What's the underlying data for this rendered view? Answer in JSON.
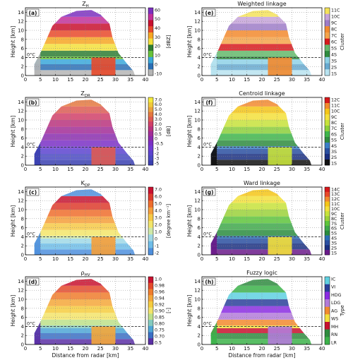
{
  "chart_data": [
    {
      "id": "a",
      "type": "heatmap",
      "title": "Z_H",
      "title_main": "Z",
      "title_sub": "H",
      "panel_label": "(a)",
      "xlabel": "",
      "ylabel": "Height [km]",
      "xlim": [
        0,
        40
      ],
      "ylim": [
        0,
        15
      ],
      "xticks": [
        "0",
        "5",
        "10",
        "15",
        "20",
        "25",
        "30",
        "35",
        "40"
      ],
      "yticks": [
        "0",
        "2",
        "4",
        "6",
        "8",
        "10",
        "12",
        "14"
      ],
      "colorbar": {
        "unit": "[dBZ]",
        "labels": [
          "60",
          "50",
          "40",
          "30",
          "20",
          "10",
          "0",
          "-10"
        ],
        "colors": [
          "#7b2fbf",
          "#c22f9a",
          "#c8102e",
          "#e8492a",
          "#f6a623",
          "#f3e03b",
          "#2e7d32",
          "#67c23a",
          "#3aa7d9",
          "#2a6fb5",
          "#b5b5b5"
        ]
      },
      "freezing_level": {
        "label": "0°C",
        "height": 4.0
      },
      "grid": true
    },
    {
      "id": "b",
      "type": "heatmap",
      "title": "Z_DR",
      "title_main": "Z",
      "title_sub": "DR",
      "panel_label": "(b)",
      "xlabel": "",
      "ylabel": "Height [km]",
      "xlim": [
        0,
        40
      ],
      "ylim": [
        0,
        15
      ],
      "xticks": [
        "0",
        "5",
        "10",
        "15",
        "20",
        "25",
        "30",
        "35",
        "40"
      ],
      "yticks": [
        "0",
        "2",
        "4",
        "6",
        "8",
        "10",
        "12",
        "14"
      ],
      "colorbar": {
        "unit": "[dB]",
        "labels": [
          "7.0",
          "6.0",
          "5.0",
          "4.0",
          "3.0",
          "2.0",
          "1.0",
          "0.5",
          "0",
          "-0.5",
          "-1",
          "-2",
          "-3",
          "-5"
        ],
        "colors": [
          "#f6eb3a",
          "#f0c93a",
          "#eaa23d",
          "#e4783f",
          "#de5a52",
          "#d03f68",
          "#b9327d",
          "#a22c97",
          "#8a2bae",
          "#7a2fc5",
          "#6f3bd3",
          "#5c43cf",
          "#4a49c2",
          "#3a3fb0"
        ]
      },
      "freezing_level": {
        "label": "0°C",
        "height": 4.0
      },
      "grid": true
    },
    {
      "id": "c",
      "type": "heatmap",
      "title": "K_DP",
      "title_main": "K",
      "title_sub": "DP",
      "panel_label": "(c)",
      "xlabel": "",
      "ylabel": "Height [km]",
      "xlim": [
        0,
        40
      ],
      "ylim": [
        0,
        15
      ],
      "xticks": [
        "0",
        "5",
        "10",
        "15",
        "20",
        "25",
        "30",
        "35",
        "40"
      ],
      "yticks": [
        "0",
        "2",
        "4",
        "6",
        "8",
        "10",
        "12",
        "14"
      ],
      "colorbar": {
        "unit": "[degree km⁻¹]",
        "labels": [
          "7.0",
          "6.0",
          "5.0",
          "4.0",
          "3.0",
          "2.0",
          "1.0",
          "0",
          "-1",
          "-2"
        ],
        "colors": [
          "#c8102e",
          "#dd3b2c",
          "#ee6d2d",
          "#f59e3a",
          "#f6c946",
          "#f3e56a",
          "#cfe9a8",
          "#9fd8e6",
          "#6fbde8",
          "#4e8fdd"
        ]
      },
      "freezing_level": {
        "label": "0°C",
        "height": 4.0
      },
      "grid": true
    },
    {
      "id": "d",
      "type": "heatmap",
      "title": "ρ_HV",
      "title_main": "ρ",
      "title_sub": "HV",
      "panel_label": "(d)",
      "xlabel": "Distance from radar [km]",
      "ylabel": "Height [km]",
      "xlim": [
        0,
        40
      ],
      "ylim": [
        0,
        15
      ],
      "xticks": [
        "0",
        "5",
        "10",
        "15",
        "20",
        "25",
        "30",
        "35",
        "40"
      ],
      "yticks": [
        "0",
        "2",
        "4",
        "6",
        "8",
        "10",
        "12",
        "14"
      ],
      "colorbar": {
        "unit": "[-]",
        "labels": [
          "1.0",
          "0.98",
          "0.96",
          "0.94",
          "0.92",
          "0.90",
          "0.85",
          "0.80",
          "0.75",
          "0.70",
          "0.5"
        ],
        "colors": [
          "#c8102e",
          "#e44a2b",
          "#ef7d2d",
          "#f4a73a",
          "#f6cc3f",
          "#f3e46a",
          "#bde089",
          "#84cbbf",
          "#4ea6d6",
          "#3a6fc4",
          "#5a2fa5"
        ]
      },
      "freezing_level": {
        "label": "0°C",
        "height": 4.0
      },
      "grid": true
    },
    {
      "id": "e",
      "type": "heatmap",
      "title": "Weighted linkage",
      "panel_label": "(e)",
      "xlabel": "",
      "ylabel": "Height [km]",
      "xlim": [
        0,
        40
      ],
      "ylim": [
        0,
        15
      ],
      "xticks": [
        "0",
        "5",
        "10",
        "15",
        "20",
        "25",
        "30",
        "35",
        "40"
      ],
      "yticks": [
        "0",
        "2",
        "4",
        "6",
        "8",
        "10",
        "12",
        "14"
      ],
      "colorbar": {
        "unit": "Cluster",
        "labels": [
          "11C",
          "10C",
          "9C",
          "8C",
          "7C",
          "6C",
          "5S",
          "4S",
          "3S",
          "2S",
          "1S"
        ],
        "colors": [
          "#f4e25a",
          "#c6a3d9",
          "#9e7cc7",
          "#f28a2e",
          "#f5a44a",
          "#d7191c",
          "#64b86b",
          "#2e8b3e",
          "#8ed1e6",
          "#67a9cf",
          "#b8e3f0"
        ]
      },
      "freezing_level": {
        "label": "0°C",
        "height": 4.0
      },
      "grid": true
    },
    {
      "id": "f",
      "type": "heatmap",
      "title": "Centroid linkage",
      "panel_label": "(f)",
      "xlabel": "",
      "ylabel": "Height [km]",
      "xlim": [
        0,
        40
      ],
      "ylim": [
        0,
        15
      ],
      "xticks": [
        "0",
        "5",
        "10",
        "15",
        "20",
        "25",
        "30",
        "35",
        "40"
      ],
      "yticks": [
        "0",
        "2",
        "4",
        "6",
        "8",
        "10",
        "12",
        "14"
      ],
      "colorbar": {
        "unit": "Cluster",
        "labels": [
          "12C",
          "11C",
          "10C",
          "9C",
          "8C",
          "7C",
          "6S",
          "5S",
          "4S",
          "3S",
          "2S",
          "1S"
        ],
        "colors": [
          "#d7191c",
          "#f28a2e",
          "#f5c518",
          "#f3e03b",
          "#c7e23b",
          "#8ccf3a",
          "#3eb54a",
          "#2e8b3e",
          "#3a7ec7",
          "#2a4fa0",
          "#1a2f80",
          "#111111"
        ]
      },
      "freezing_level": {
        "label": "0°C",
        "height": 4.0
      },
      "grid": true
    },
    {
      "id": "g",
      "type": "heatmap",
      "title": "Ward linkage",
      "panel_label": "(g)",
      "xlabel": "",
      "ylabel": "Height [km]",
      "xlim": [
        0,
        40
      ],
      "ylim": [
        0,
        15
      ],
      "xticks": [
        "0",
        "5",
        "10",
        "15",
        "20",
        "25",
        "30",
        "35",
        "40"
      ],
      "yticks": [
        "0",
        "2",
        "4",
        "6",
        "8",
        "10",
        "12",
        "14"
      ],
      "colorbar": {
        "unit": "Cluster",
        "labels": [
          "14C",
          "13C",
          "12C",
          "11C",
          "10C",
          "9C",
          "8C",
          "7S",
          "6S",
          "5S",
          "4S",
          "3S",
          "2S",
          "1S"
        ],
        "colors": [
          "#d7191c",
          "#e8492a",
          "#f28a2e",
          "#f5c518",
          "#f3e03b",
          "#c7e23b",
          "#9bd13a",
          "#5ec43b",
          "#3ea84a",
          "#2a8c3e",
          "#2a6fb5",
          "#2a4fa0",
          "#1a2f80",
          "#6a1a8a"
        ]
      },
      "freezing_level": {
        "label": "0°C",
        "height": 4.0
      },
      "grid": true
    },
    {
      "id": "h",
      "type": "heatmap",
      "title": "Fuzzy logic",
      "panel_label": "(h)",
      "xlabel": "Distance from radar [km]",
      "ylabel": "Height [km]",
      "xlim": [
        0,
        40
      ],
      "ylim": [
        0,
        15
      ],
      "xticks": [
        "0",
        "5",
        "10",
        "15",
        "20",
        "25",
        "30",
        "35",
        "40"
      ],
      "yticks": [
        "0",
        "2",
        "4",
        "6",
        "8",
        "10",
        "12",
        "14"
      ],
      "colorbar": {
        "unit": "Type",
        "labels": [
          "IC",
          "VI",
          "HDG",
          "LDG",
          "AG",
          "WS",
          "MH",
          "RN",
          "LR"
        ],
        "colors": [
          "#5fd0e0",
          "#2a3f9a",
          "#8a2be2",
          "#b37bd9",
          "#f28a2e",
          "#f3e03b",
          "#c8102e",
          "#2e8b3e",
          "#3cb34a"
        ]
      },
      "freezing_level": {
        "label": "0°C",
        "height": 4.0
      },
      "grid": true
    }
  ]
}
